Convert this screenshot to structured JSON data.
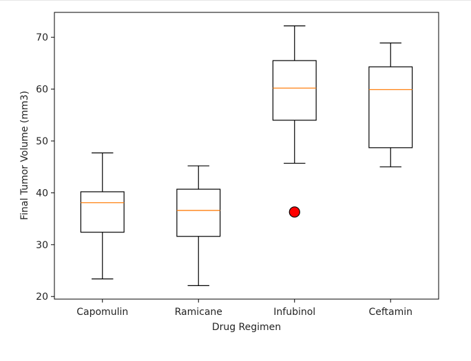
{
  "chart_data": {
    "type": "boxplot",
    "title": "",
    "xlabel": "Drug Regimen",
    "ylabel": "Final Tumor Volume (mm3)",
    "ylim": [
      19.5,
      74.8
    ],
    "yticks": [
      20,
      30,
      40,
      50,
      60,
      70
    ],
    "grid": false,
    "categories": [
      "Capomulin",
      "Ramicane",
      "Infubinol",
      "Ceftamin"
    ],
    "boxes": [
      {
        "name": "Capomulin",
        "whisker_low": 23.4,
        "q1": 32.4,
        "median": 38.1,
        "q3": 40.2,
        "whisker_high": 47.7,
        "outliers": []
      },
      {
        "name": "Ramicane",
        "whisker_low": 22.1,
        "q1": 31.6,
        "median": 36.6,
        "q3": 40.7,
        "whisker_high": 45.2,
        "outliers": []
      },
      {
        "name": "Infubinol",
        "whisker_low": 45.7,
        "q1": 54.0,
        "median": 60.2,
        "q3": 65.5,
        "whisker_high": 72.2,
        "outliers": [
          36.3
        ]
      },
      {
        "name": "Ceftamin",
        "whisker_low": 45.0,
        "q1": 48.7,
        "median": 59.9,
        "q3": 64.3,
        "whisker_high": 68.9,
        "outliers": []
      }
    ],
    "colors": {
      "box": "#000000",
      "median": "#ff7f0e",
      "outlier_fill": "#ff0000",
      "outlier_edge": "#000000"
    }
  }
}
